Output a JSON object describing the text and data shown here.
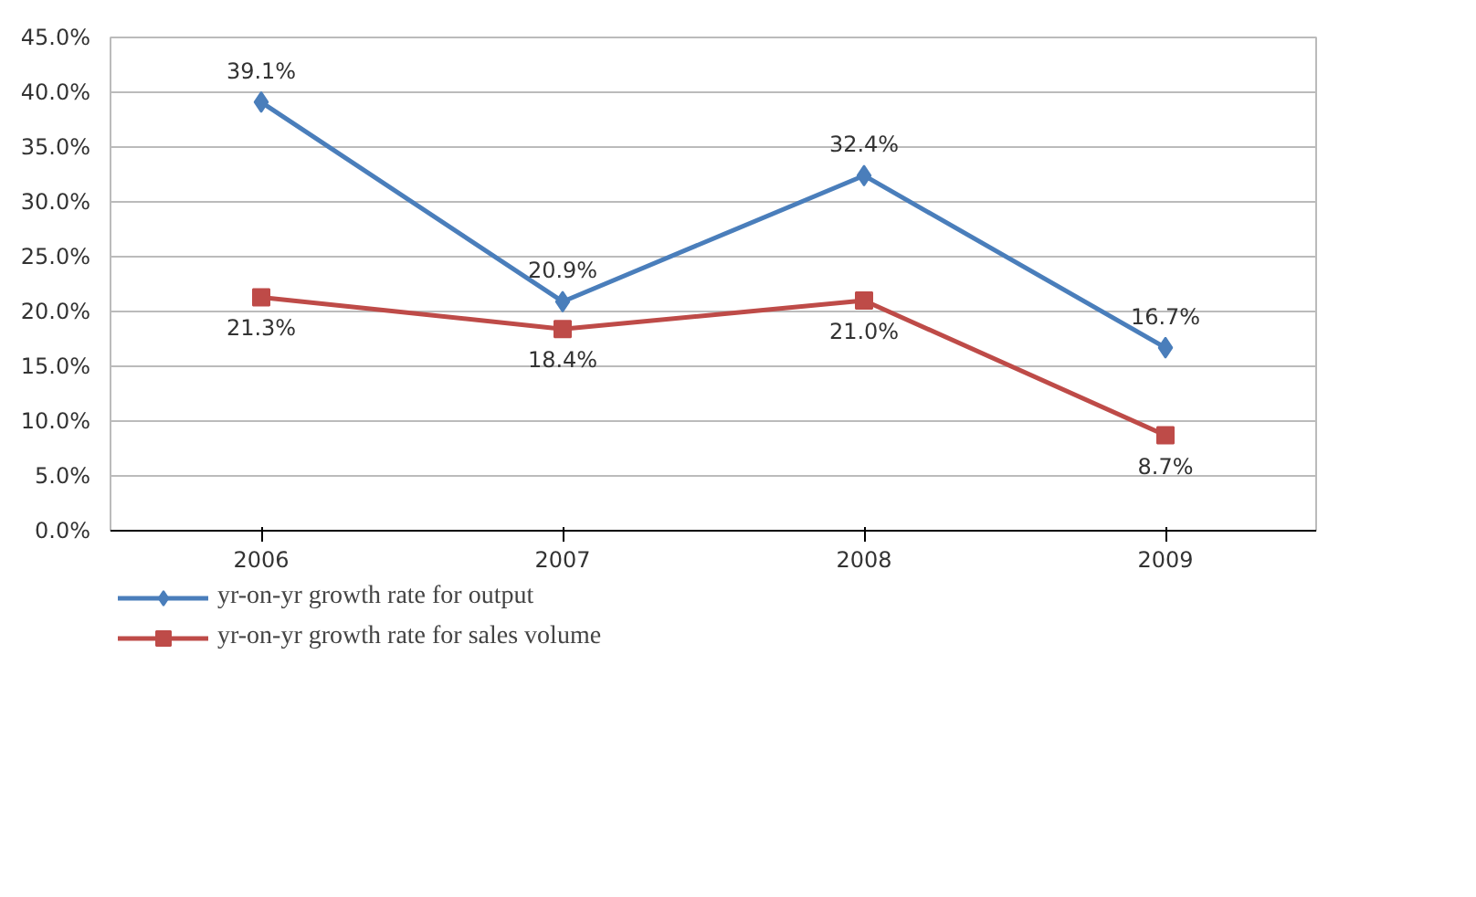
{
  "chart_data": {
    "type": "line",
    "categories": [
      "2006",
      "2007",
      "2008",
      "2009"
    ],
    "series": [
      {
        "name": "yr-on-yr growth rate for output",
        "color": "#4a7ebb",
        "marker": "diamond",
        "values": [
          39.1,
          20.9,
          32.4,
          16.7
        ],
        "value_labels": [
          "39.1%",
          "20.9%",
          "32.4%",
          "16.7%"
        ]
      },
      {
        "name": "yr-on-yr growth rate for sales volume",
        "color": "#be4b48",
        "marker": "square",
        "values": [
          21.3,
          18.4,
          21.0,
          8.7
        ],
        "value_labels": [
          "21.3%",
          "18.4%",
          "21.0%",
          "8.7%"
        ]
      }
    ],
    "ylim": [
      0,
      45
    ],
    "yticks": [
      {
        "value": 0,
        "label": "0.0%"
      },
      {
        "value": 5,
        "label": "5.0%"
      },
      {
        "value": 10,
        "label": "10.0%"
      },
      {
        "value": 15,
        "label": "15.0%"
      },
      {
        "value": 20,
        "label": "20.0%"
      },
      {
        "value": 25,
        "label": "25.0%"
      },
      {
        "value": 30,
        "label": "30.0%"
      },
      {
        "value": 35,
        "label": "35.0%"
      },
      {
        "value": 40,
        "label": "40.0%"
      },
      {
        "value": 45,
        "label": "45.0%"
      }
    ],
    "grid": "y",
    "legend": "bottom",
    "line_style": "solid"
  }
}
